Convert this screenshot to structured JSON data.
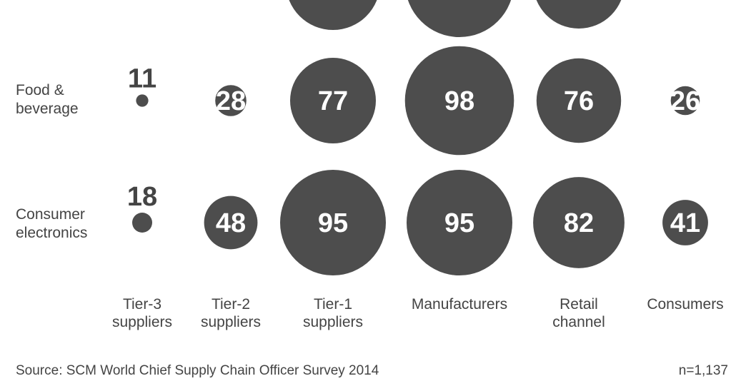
{
  "chart_data": {
    "type": "bubble",
    "columns": [
      "Tier-3 suppliers",
      "Tier-2 suppliers",
      "Tier-1 suppliers",
      "Manufacturers",
      "Retail channel",
      "Consumers"
    ],
    "column_labels": [
      [
        "Tier-3",
        "suppliers"
      ],
      [
        "Tier-2",
        "suppliers"
      ],
      [
        "Tier-1",
        "suppliers"
      ],
      [
        "Manufacturers"
      ],
      [
        "Retail",
        "channel"
      ],
      [
        "Consumers"
      ]
    ],
    "rows": [
      {
        "label": [
          "Food &",
          "beverage"
        ],
        "values": [
          11,
          28,
          77,
          98,
          76,
          26
        ]
      },
      {
        "label": [
          "Consumer",
          "electronics"
        ],
        "values": [
          18,
          48,
          95,
          95,
          82,
          41
        ]
      }
    ],
    "bubble_color": "#4d4d4d",
    "value_text_color_inside": "#ffffff",
    "value_text_color_outside": "#444444",
    "source": "Source: SCM World Chief Supply Chain Officer Survey 2014",
    "sample_size": "n=1,137"
  }
}
